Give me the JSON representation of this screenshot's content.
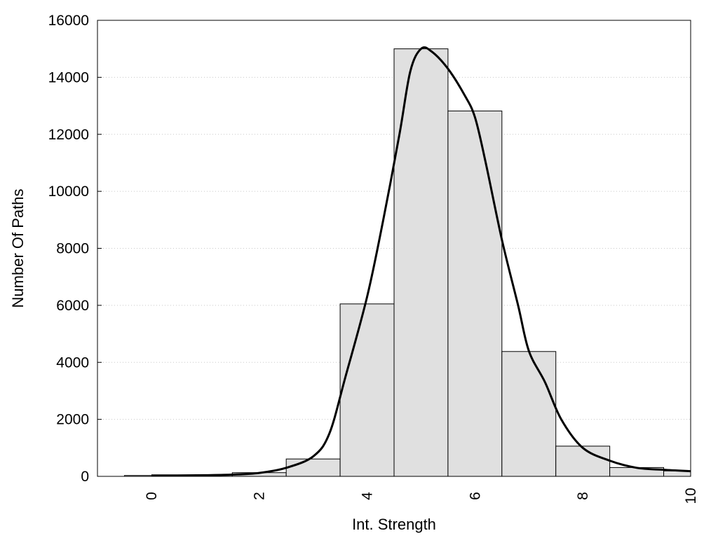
{
  "chart_data": {
    "type": "bar",
    "title": "",
    "xlabel": "Int. Strength",
    "ylabel": "Number Of Paths",
    "xlim": [
      -1,
      10
    ],
    "ylim": [
      0,
      16000
    ],
    "xticks": [
      0,
      2,
      4,
      6,
      8,
      10
    ],
    "yticks": [
      0,
      2000,
      4000,
      6000,
      8000,
      10000,
      12000,
      14000,
      16000
    ],
    "grid": "horizontal dotted",
    "bar_color": "#e0e0e0",
    "line_color": "#000000",
    "bins": [
      {
        "x": 0,
        "value": 30
      },
      {
        "x": 1,
        "value": 50
      },
      {
        "x": 2,
        "value": 130
      },
      {
        "x": 3,
        "value": 610
      },
      {
        "x": 4,
        "value": 6050
      },
      {
        "x": 5,
        "value": 15000
      },
      {
        "x": 6,
        "value": 12820
      },
      {
        "x": 7,
        "value": 4380
      },
      {
        "x": 8,
        "value": 1060
      },
      {
        "x": 9,
        "value": 310
      },
      {
        "x": 10,
        "value": 190
      }
    ],
    "bin_width": 1,
    "density_curve": {
      "x": [
        0,
        0.5,
        1,
        1.5,
        2,
        2.5,
        3,
        3.3,
        3.6,
        4,
        4.3,
        4.6,
        4.8,
        5,
        5.2,
        5.5,
        5.8,
        6,
        6.2,
        6.5,
        6.8,
        7,
        7.3,
        7.6,
        8,
        8.5,
        9,
        9.5,
        10
      ],
      "y": [
        30,
        30,
        40,
        60,
        120,
        300,
        700,
        1500,
        3500,
        6300,
        9000,
        12000,
        14200,
        15000,
        14900,
        14300,
        13400,
        12600,
        11000,
        8300,
        6000,
        4400,
        3300,
        2000,
        1000,
        550,
        300,
        230,
        180
      ]
    }
  }
}
